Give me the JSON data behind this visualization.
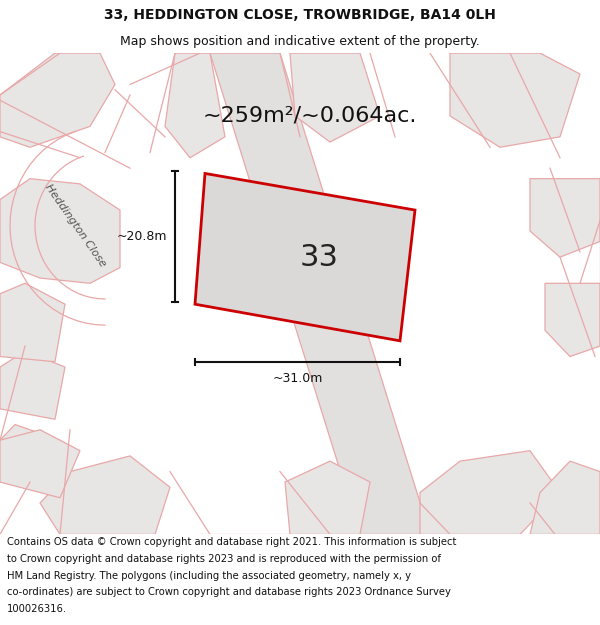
{
  "title_line1": "33, HEDDINGTON CLOSE, TROWBRIDGE, BA14 0LH",
  "title_line2": "Map shows position and indicative extent of the property.",
  "area_text": "~259m²/~0.064ac.",
  "plot_number": "33",
  "dim_width": "~31.0m",
  "dim_height": "~20.8m",
  "footer_lines": [
    "Contains OS data © Crown copyright and database right 2021. This information is subject",
    "to Crown copyright and database rights 2023 and is reproduced with the permission of",
    "HM Land Registry. The polygons (including the associated geometry, namely x, y",
    "co-ordinates) are subject to Crown copyright and database rights 2023 Ordnance Survey",
    "100026316."
  ],
  "map_bg": "#f7f5f5",
  "parcel_fill": "#e8e5e5",
  "road_color": "#e8a8a8",
  "plot_fill": "#dbd8d8",
  "plot_edge": "#cc0000",
  "title_fontsize": 10,
  "subtitle_fontsize": 9,
  "footer_fontsize": 7.2,
  "area_fontsize": 16,
  "number_fontsize": 22,
  "dim_fontsize": 9,
  "street_label": "Heddington Close",
  "street_fontsize": 8
}
